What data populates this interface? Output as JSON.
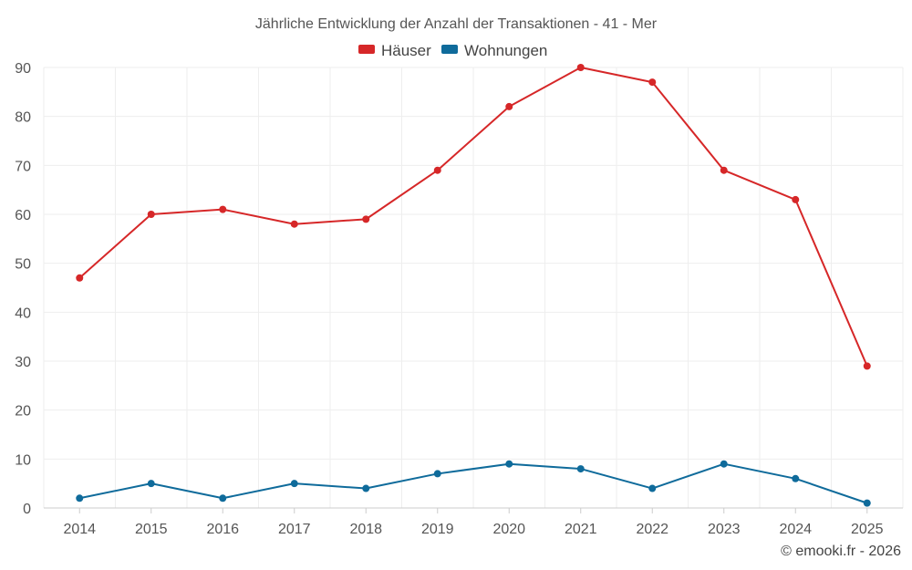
{
  "chart_data": {
    "type": "line",
    "title": "Jährliche Entwicklung der Anzahl der Transaktionen - 41 - Mer",
    "xlabel": "",
    "ylabel": "",
    "x": [
      "2014",
      "2015",
      "2016",
      "2017",
      "2018",
      "2019",
      "2020",
      "2021",
      "2022",
      "2023",
      "2024",
      "2025"
    ],
    "ylim": [
      0,
      90
    ],
    "yticks": [
      "0",
      "10",
      "20",
      "30",
      "40",
      "50",
      "60",
      "70",
      "80",
      "90"
    ],
    "grid": true,
    "legend_position": "top-center",
    "series": [
      {
        "name": "Häuser",
        "color": "#d62728",
        "values": [
          47,
          60,
          61,
          58,
          59,
          69,
          82,
          90,
          87,
          69,
          63,
          29
        ]
      },
      {
        "name": "Wohnungen",
        "color": "#0f6b9b",
        "values": [
          2,
          5,
          2,
          5,
          4,
          7,
          9,
          8,
          4,
          9,
          6,
          1
        ]
      }
    ]
  },
  "credit": "© emooki.fr - 2026"
}
